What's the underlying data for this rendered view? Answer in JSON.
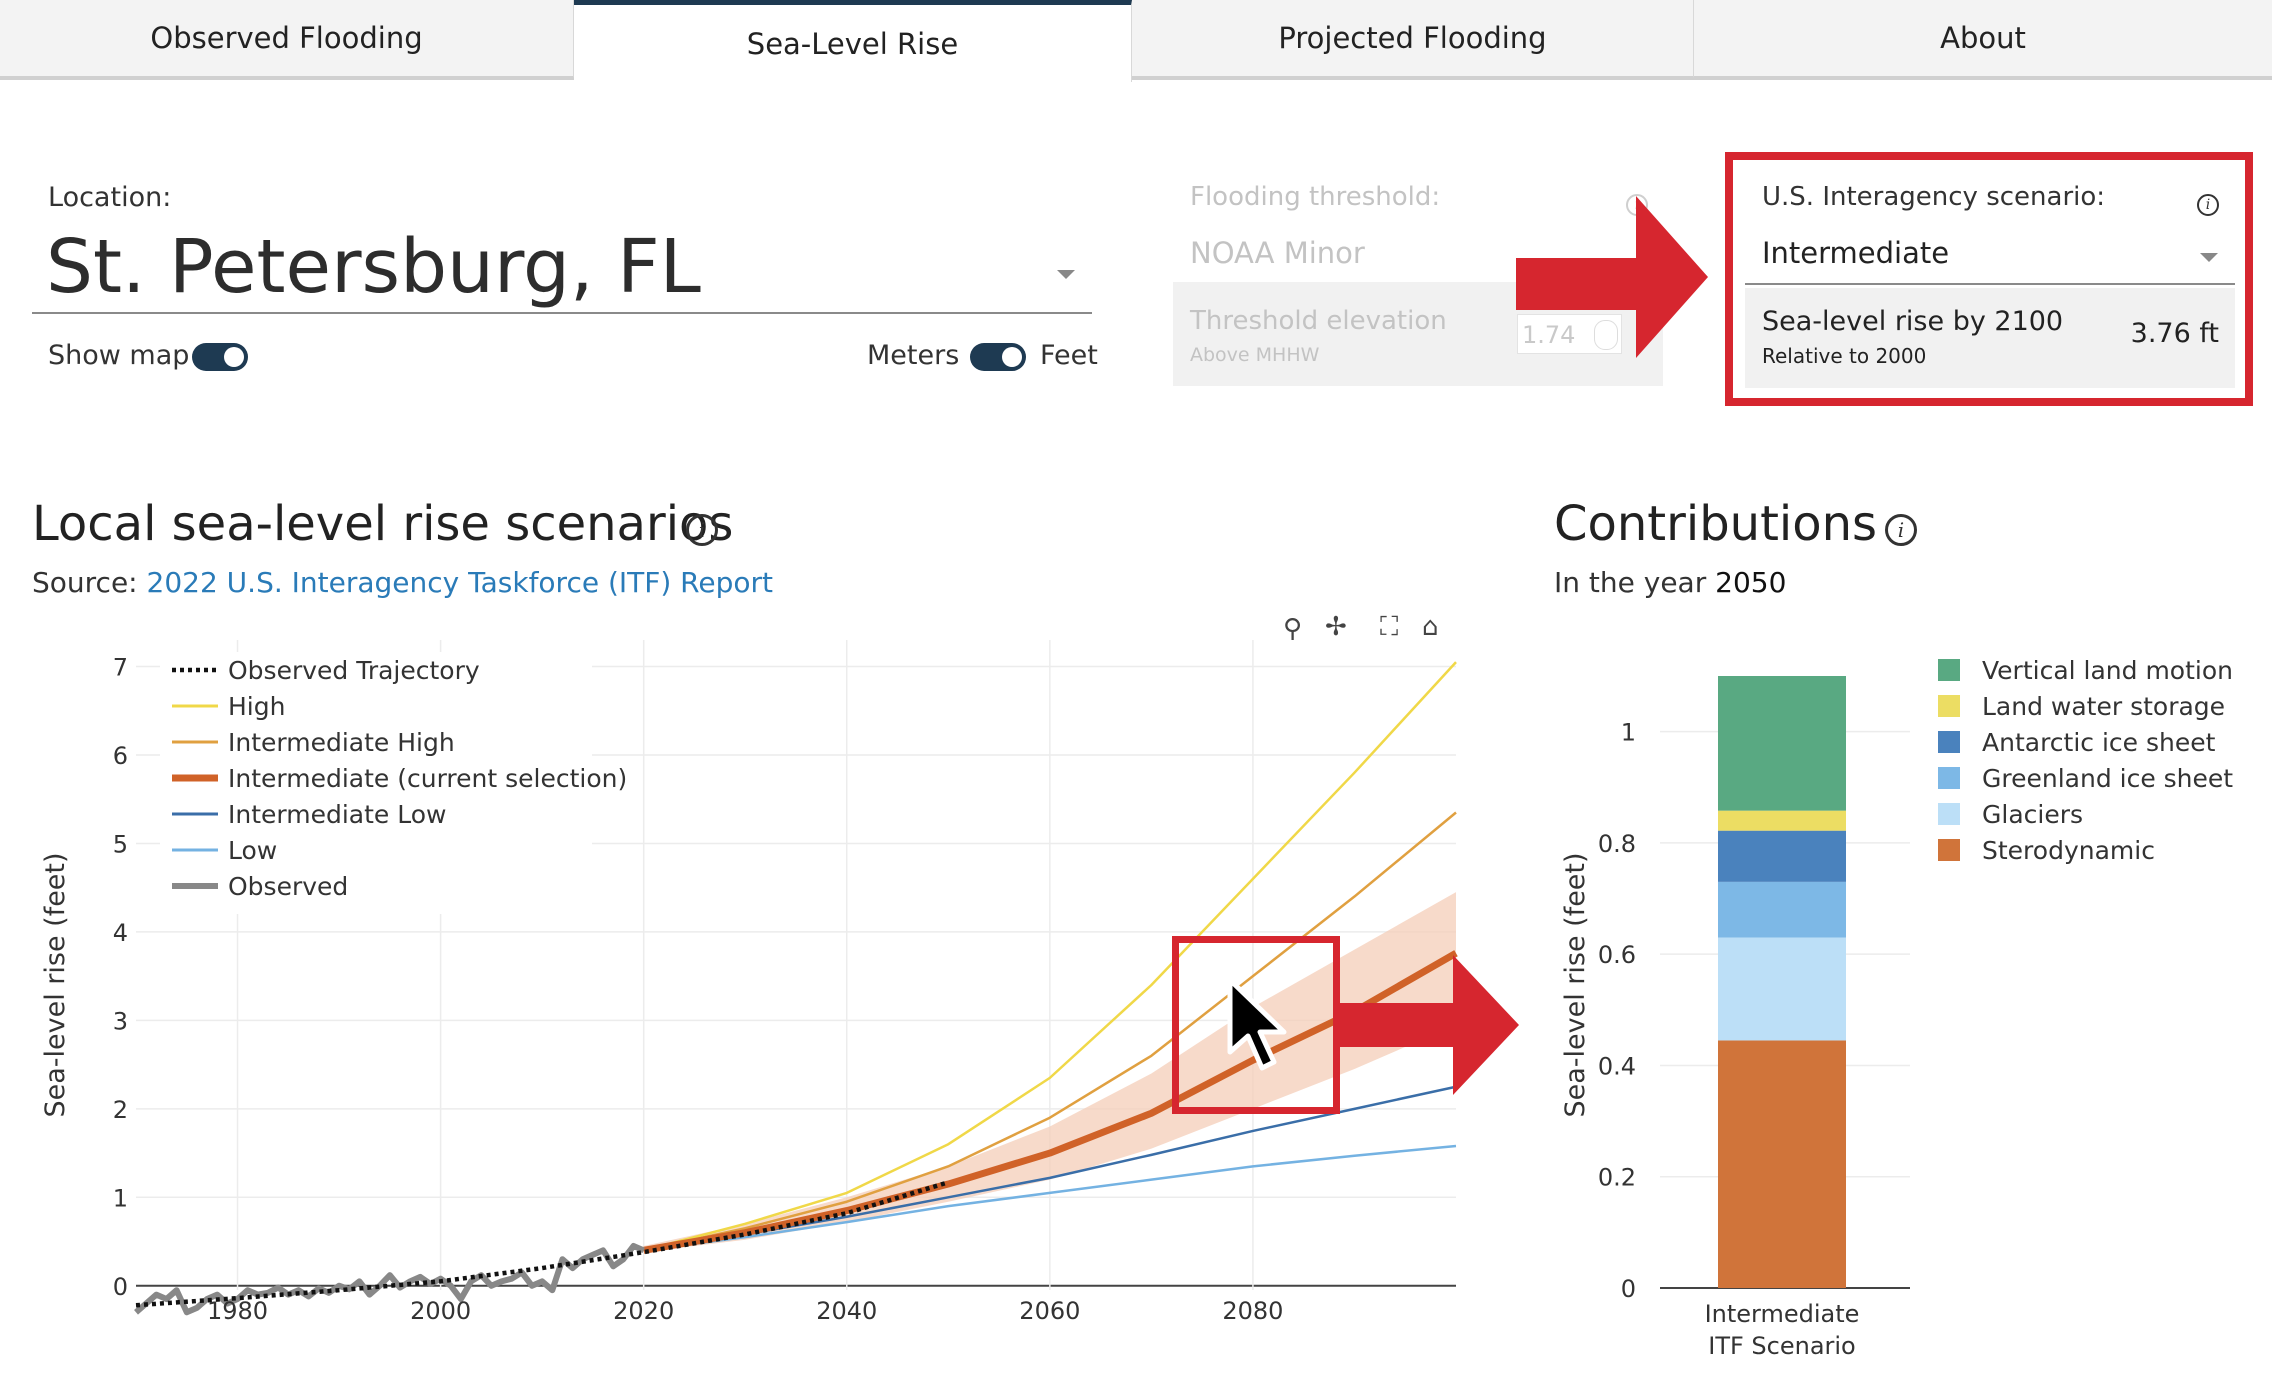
{
  "tabs": [
    {
      "label": "Observed Flooding",
      "active": false
    },
    {
      "label": "Sea-Level Rise",
      "active": true
    },
    {
      "label": "Projected Flooding",
      "active": false
    },
    {
      "label": "About",
      "active": false
    }
  ],
  "location": {
    "label": "Location:",
    "value": "St. Petersburg, FL",
    "show_map_label": "Show map",
    "show_map_on": true,
    "units_left": "Meters",
    "units_right": "Feet",
    "units_feet_selected": true
  },
  "threshold": {
    "label": "Flooding threshold:",
    "value": "NOAA Minor",
    "elevation_label": "Threshold elevation",
    "elevation_sublabel": "Above MHHW",
    "elevation_value": "1.74",
    "unit_fragment": "ft"
  },
  "scenario": {
    "label": "U.S. Interagency scenario:",
    "value": "Intermediate",
    "slr_label": "Sea-level rise by 2100",
    "slr_sublabel": "Relative to 2000",
    "slr_value": "3.76 ft"
  },
  "left_chart": {
    "heading": "Local sea-level rise scenarios",
    "source_prefix": "Source: ",
    "source_link": "2022 U.S. Interagency Taskforce (ITF) Report"
  },
  "right_chart": {
    "heading": "Contributions",
    "year_prefix": "In the year ",
    "year": "2050"
  },
  "icons": [
    "info-icon",
    "zoom-icon",
    "pan-icon",
    "autoscale-icon",
    "home-icon",
    "dropdown-caret-icon",
    "cursor-arrow-icon"
  ],
  "colors": {
    "accent_navy": "#1e3a52",
    "annotation_red": "#d6262f",
    "link_blue": "#2a7bb8",
    "high": "#f0d848",
    "intermediate_high": "#e0a040",
    "intermediate": "#d06228",
    "intermediate_band": "#f4cdb8",
    "intermediate_low": "#3a6ea8",
    "low": "#74b2e2",
    "observed": "#888888"
  },
  "chart_data": [
    {
      "type": "line",
      "title": "",
      "xlabel": "",
      "ylabel": "Sea-level rise (feet)",
      "xlim": [
        1970,
        2100
      ],
      "ylim": [
        -0.5,
        7.3
      ],
      "xticks": [
        1980,
        2000,
        2020,
        2040,
        2060,
        2080
      ],
      "yticks": [
        0,
        1,
        2,
        3,
        4,
        5,
        6,
        7
      ],
      "grid": true,
      "legend_position": "top-left",
      "legend": [
        "Observed Trajectory",
        "High",
        "Intermediate High",
        "Intermediate (current selection)",
        "Intermediate Low",
        "Low",
        "Observed"
      ],
      "series": [
        {
          "name": "Observed Trajectory",
          "style": "dotted",
          "color": "#111111",
          "x": [
            1970,
            1980,
            1990,
            2000,
            2010,
            2020,
            2030,
            2040,
            2050
          ],
          "y": [
            -0.22,
            -0.14,
            -0.05,
            0.05,
            0.2,
            0.38,
            0.58,
            0.82,
            1.17
          ]
        },
        {
          "name": "High",
          "color": "#f0d848",
          "x": [
            2020,
            2030,
            2040,
            2050,
            2060,
            2070,
            2080,
            2090,
            2100
          ],
          "y": [
            0.4,
            0.7,
            1.05,
            1.6,
            2.35,
            3.4,
            4.6,
            5.8,
            7.05
          ]
        },
        {
          "name": "Intermediate High",
          "color": "#e0a040",
          "x": [
            2020,
            2030,
            2040,
            2050,
            2060,
            2070,
            2080,
            2090,
            2100
          ],
          "y": [
            0.4,
            0.65,
            0.95,
            1.35,
            1.9,
            2.6,
            3.5,
            4.4,
            5.35
          ]
        },
        {
          "name": "Intermediate (current selection)",
          "color": "#d06228",
          "x": [
            2020,
            2030,
            2040,
            2050,
            2060,
            2070,
            2080,
            2090,
            2100
          ],
          "y": [
            0.4,
            0.6,
            0.85,
            1.15,
            1.5,
            1.95,
            2.55,
            3.1,
            3.76
          ],
          "band_low": [
            0.38,
            0.52,
            0.72,
            0.95,
            1.2,
            1.55,
            2.0,
            2.45,
            2.95
          ],
          "band_high": [
            0.45,
            0.7,
            1.0,
            1.35,
            1.8,
            2.4,
            3.15,
            3.8,
            4.45
          ]
        },
        {
          "name": "Intermediate Low",
          "color": "#3a6ea8",
          "x": [
            2020,
            2030,
            2040,
            2050,
            2060,
            2070,
            2080,
            2090,
            2100
          ],
          "y": [
            0.4,
            0.58,
            0.78,
            1.0,
            1.22,
            1.48,
            1.75,
            2.0,
            2.25
          ]
        },
        {
          "name": "Low",
          "color": "#74b2e2",
          "x": [
            2020,
            2030,
            2040,
            2050,
            2060,
            2070,
            2080,
            2090,
            2100
          ],
          "y": [
            0.4,
            0.55,
            0.72,
            0.9,
            1.05,
            1.2,
            1.35,
            1.47,
            1.58
          ]
        },
        {
          "name": "Observed",
          "color": "#888888",
          "x": [
            1970,
            1971,
            1972,
            1973,
            1974,
            1975,
            1976,
            1977,
            1978,
            1979,
            1980,
            1981,
            1982,
            1983,
            1984,
            1985,
            1986,
            1987,
            1988,
            1989,
            1990,
            1991,
            1992,
            1993,
            1994,
            1995,
            1996,
            1997,
            1998,
            1999,
            2000,
            2001,
            2002,
            2003,
            2004,
            2005,
            2006,
            2007,
            2008,
            2009,
            2010,
            2011,
            2012,
            2013,
            2014,
            2015,
            2016,
            2017,
            2018,
            2019,
            2020
          ],
          "y": [
            -0.3,
            -0.2,
            -0.1,
            -0.15,
            -0.05,
            -0.3,
            -0.25,
            -0.15,
            -0.1,
            -0.2,
            -0.15,
            -0.05,
            -0.1,
            -0.08,
            -0.02,
            -0.1,
            -0.05,
            -0.12,
            -0.03,
            -0.08,
            0.0,
            -0.04,
            0.05,
            -0.1,
            0.0,
            0.12,
            -0.02,
            0.05,
            0.1,
            0.02,
            0.08,
            0.0,
            -0.15,
            0.05,
            0.12,
            0.0,
            0.05,
            0.08,
            0.15,
            0.0,
            0.05,
            -0.05,
            0.3,
            0.2,
            0.3,
            0.35,
            0.4,
            0.22,
            0.3,
            0.45,
            0.4
          ]
        }
      ]
    },
    {
      "type": "bar",
      "stacked": true,
      "title": "",
      "xlabel": "",
      "ylabel": "Sea-level rise (feet)",
      "categories": [
        "Intermediate ITF Scenario"
      ],
      "ylim": [
        0,
        1.1
      ],
      "yticks": [
        0,
        0.2,
        0.4,
        0.6,
        0.8,
        1
      ],
      "legend_position": "right",
      "series": [
        {
          "name": "Sterodynamic",
          "color": "#d0743a",
          "values": [
            0.445
          ]
        },
        {
          "name": "Glaciers",
          "color": "#bcdff7",
          "values": [
            0.185
          ]
        },
        {
          "name": "Greenland ice sheet",
          "color": "#7db8e6",
          "values": [
            0.1
          ]
        },
        {
          "name": "Antarctic ice sheet",
          "color": "#4a82bd",
          "values": [
            0.092
          ]
        },
        {
          "name": "Land water storage",
          "color": "#ecdd63",
          "values": [
            0.036
          ]
        },
        {
          "name": "Vertical land motion",
          "color": "#59a982",
          "values": [
            0.242
          ]
        }
      ]
    }
  ]
}
